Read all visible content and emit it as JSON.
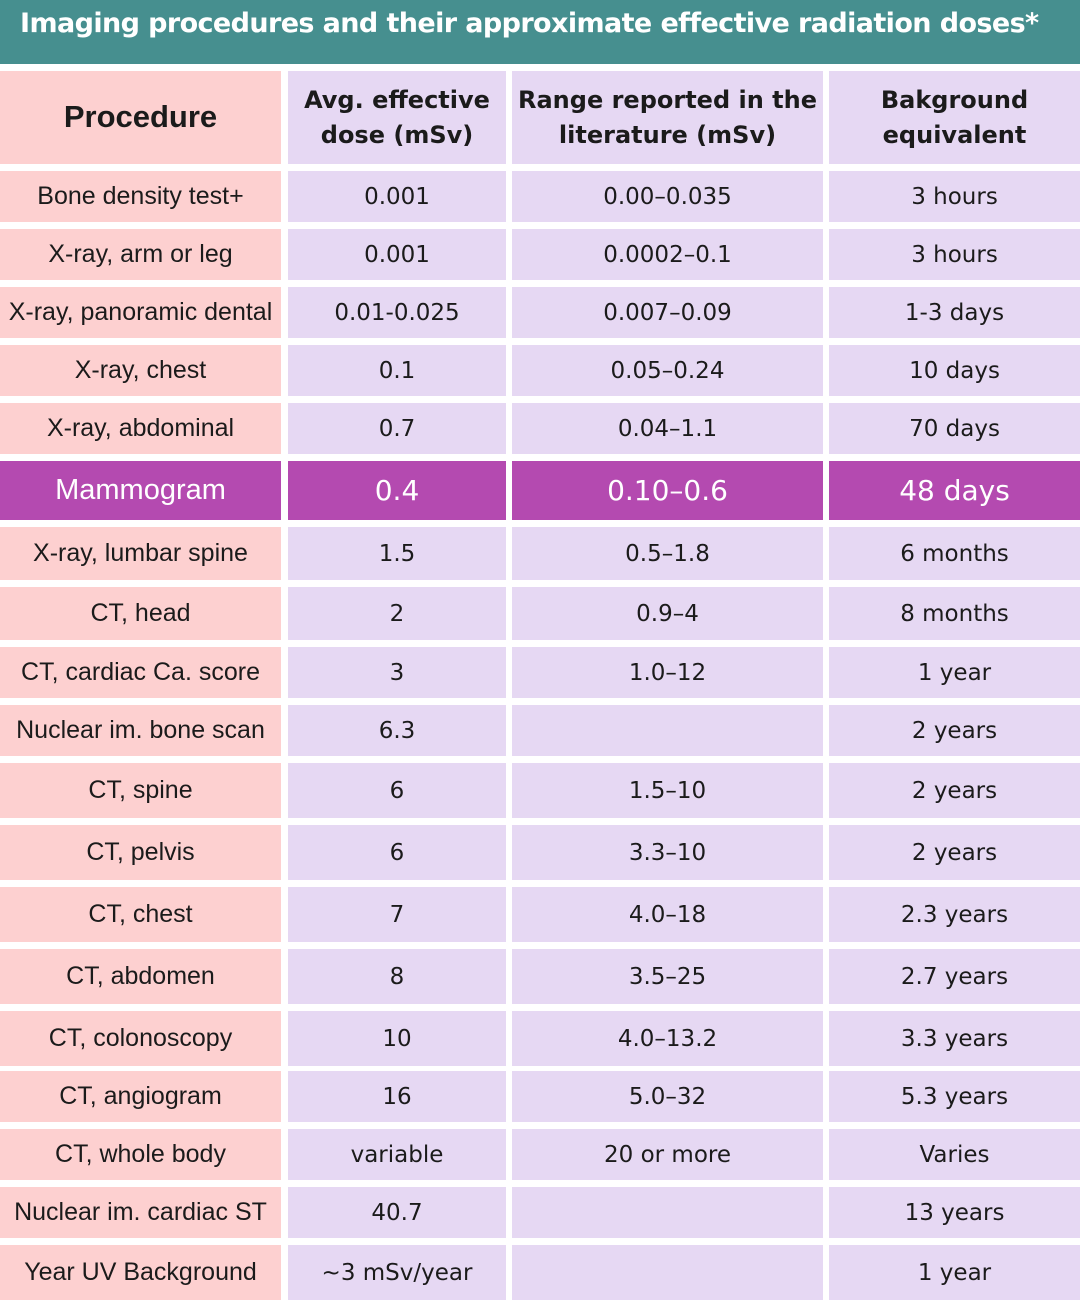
{
  "title": "Imaging procedures and their approximate effective radiation doses*",
  "colors": {
    "title_bar": "#468f8f",
    "procedure_column": "#fdd0d0",
    "data_columns": "#e6d8f3",
    "highlight_row": "#b44ab0"
  },
  "table": {
    "headers": [
      "Procedure",
      "Avg. effective dose (mSv)",
      "Range reported in the literature (mSv)",
      "Bakground equivalent"
    ],
    "highlight_row_index": 5,
    "rows": [
      [
        "Bone density test+",
        "0.001",
        "0.00–0.035",
        "3 hours"
      ],
      [
        "X-ray, arm or leg",
        "0.001",
        "0.0002–0.1",
        "3 hours"
      ],
      [
        "X-ray, panoramic dental",
        "0.01-0.025",
        "0.007–0.09",
        "1-3 days"
      ],
      [
        "X-ray, chest",
        "0.1",
        "0.05–0.24",
        "10 days"
      ],
      [
        "X-ray, abdominal",
        "0.7",
        "0.04–1.1",
        "70 days"
      ],
      [
        "Mammogram",
        "0.4",
        "0.10–0.6",
        "48 days"
      ],
      [
        "X-ray, lumbar spine",
        "1.5",
        "0.5–1.8",
        "6 months"
      ],
      [
        "CT, head",
        "2",
        "0.9–4",
        "8 months"
      ],
      [
        "CT, cardiac Ca. score",
        "3",
        "1.0–12",
        "1 year"
      ],
      [
        "Nuclear im. bone scan",
        "6.3",
        "",
        "2 years"
      ],
      [
        "CT, spine",
        "6",
        "1.5–10",
        "2 years"
      ],
      [
        "CT, pelvis",
        "6",
        "3.3–10",
        "2 years"
      ],
      [
        "CT, chest",
        "7",
        "4.0–18",
        "2.3 years"
      ],
      [
        "CT, abdomen",
        "8",
        "3.5–25",
        "2.7 years"
      ],
      [
        "CT, colonoscopy",
        "10",
        "4.0–13.2",
        "3.3 years"
      ],
      [
        "CT, angiogram",
        "16",
        "5.0–32",
        "5.3 years"
      ],
      [
        "CT, whole body",
        "variable",
        "20 or more",
        "Varies"
      ],
      [
        "Nuclear im. cardiac ST",
        "40.7",
        "",
        "13 years"
      ],
      [
        "Year UV Background",
        "~3 mSv/year",
        "",
        "1 year"
      ]
    ]
  }
}
